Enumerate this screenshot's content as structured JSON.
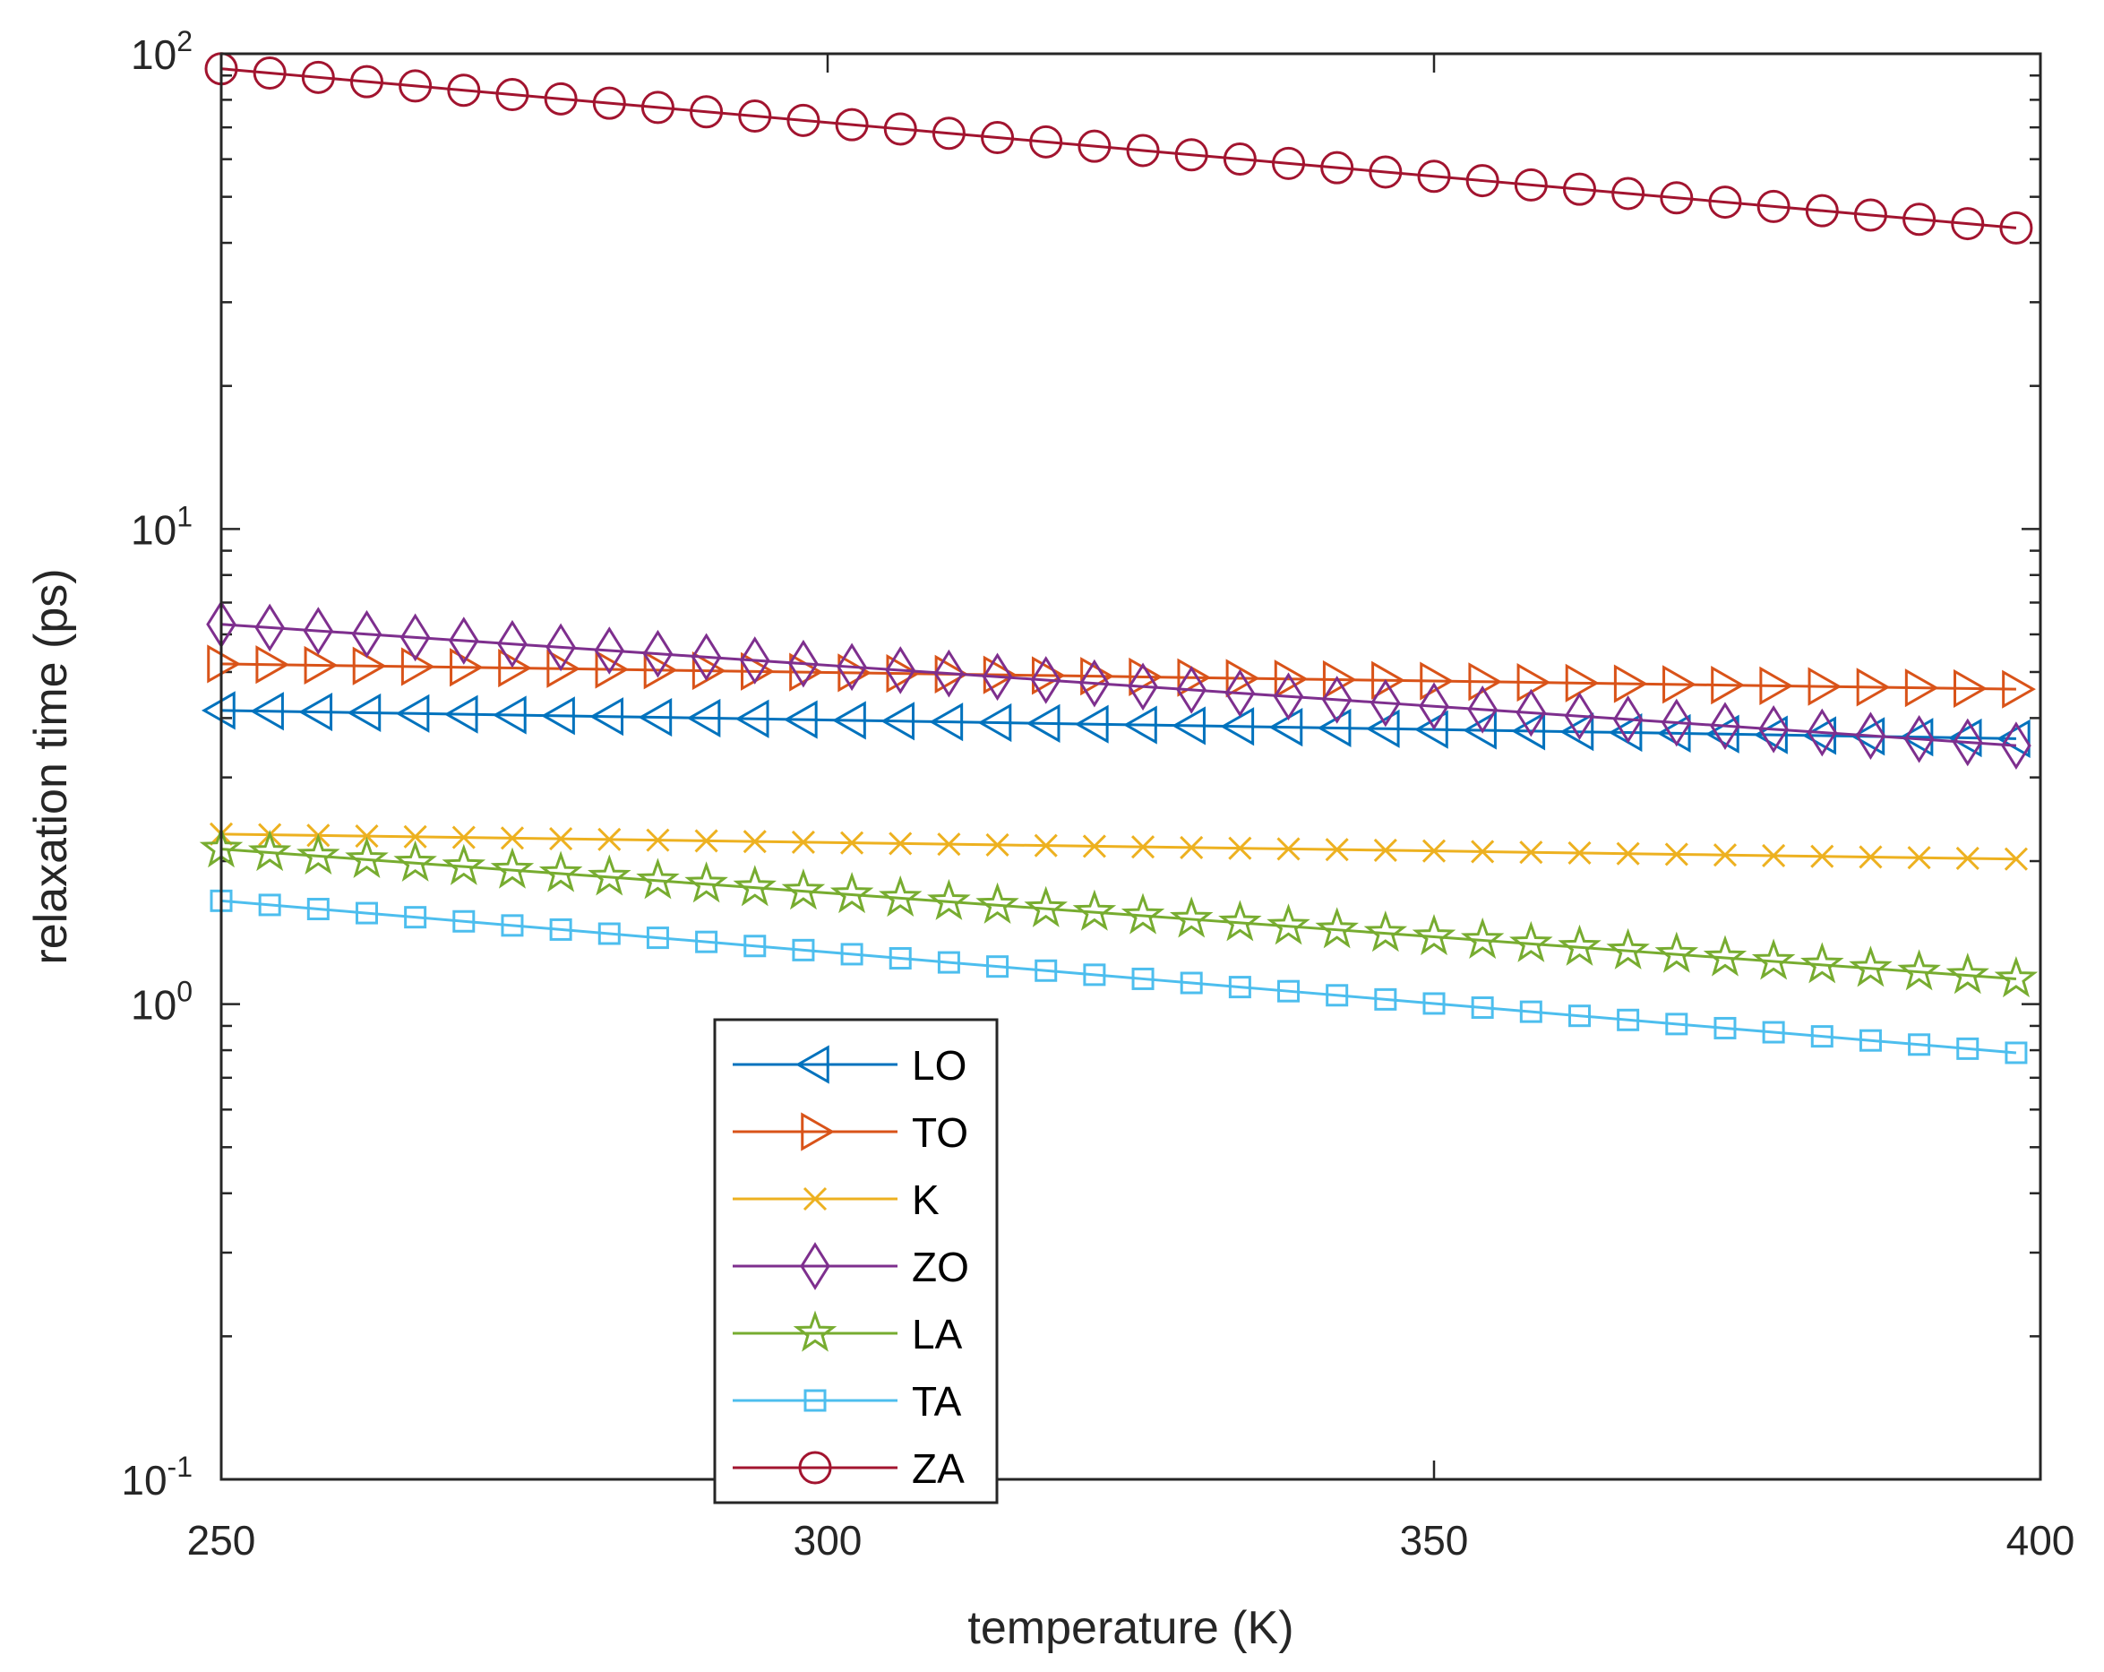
{
  "chart_data": {
    "type": "line",
    "title": "",
    "xlabel": "temperature (K)",
    "ylabel": "relaxation time (ps)",
    "xscale": "linear",
    "yscale": "log",
    "xlim": [
      250,
      400
    ],
    "ylim": [
      0.1,
      100
    ],
    "xticks": [
      250,
      300,
      350,
      400
    ],
    "xtick_labels": [
      "250",
      "300",
      "350",
      "400"
    ],
    "yticks": [
      0.1,
      1,
      10,
      100
    ],
    "ytick_labels": [
      {
        "base": "10",
        "exp": "-1"
      },
      {
        "base": "10",
        "exp": "0"
      },
      {
        "base": "10",
        "exp": "1"
      },
      {
        "base": "10",
        "exp": "2"
      }
    ],
    "grid": false,
    "legend_location": "bottom-left-center",
    "x_start": 250,
    "x_step": 4,
    "x_count": 38,
    "series": [
      {
        "name": "LO",
        "color": "#0072BD",
        "marker": "triangle-left",
        "start": 4.15,
        "end": 3.62
      },
      {
        "name": "TO",
        "color": "#D95319",
        "marker": "triangle-right",
        "start": 5.2,
        "end": 4.6
      },
      {
        "name": "K",
        "color": "#EDB120",
        "marker": "x",
        "start": 2.28,
        "end": 2.02
      },
      {
        "name": "ZO",
        "color": "#7E2F8E",
        "marker": "diamond",
        "start": 6.3,
        "end": 3.5
      },
      {
        "name": "LA",
        "color": "#77AC30",
        "marker": "pentagram",
        "start": 2.12,
        "end": 1.13
      },
      {
        "name": "TA",
        "color": "#4DBEEE",
        "marker": "square",
        "start": 1.65,
        "end": 0.79
      },
      {
        "name": "ZA",
        "color": "#A2142F",
        "marker": "circle",
        "start": 93,
        "end": 43
      }
    ]
  }
}
